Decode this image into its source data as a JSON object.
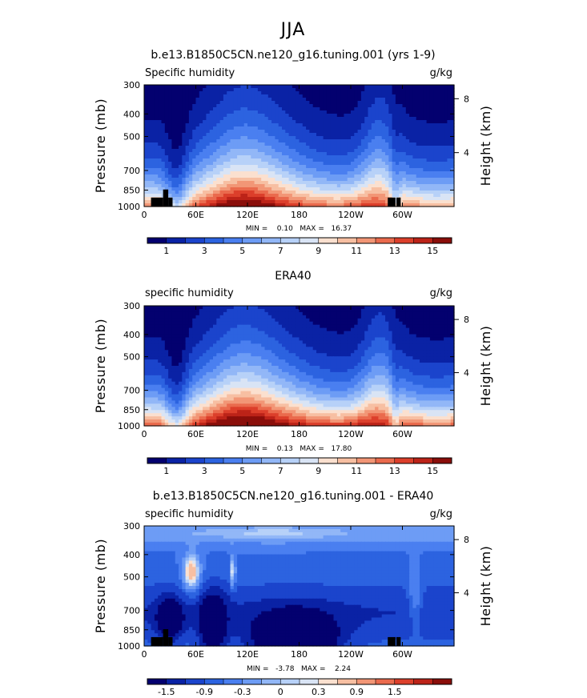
{
  "page_title": "JJA",
  "colors": {
    "seq": [
      "#03006f",
      "#0a22a5",
      "#1b44cc",
      "#2c63e0",
      "#4a7ff0",
      "#6d9cf5",
      "#92b7f7",
      "#b7d1f8",
      "#d9e4f5",
      "#fbe0cf",
      "#f7bfa2",
      "#f29676",
      "#ea6a4d",
      "#dc3f2b",
      "#bc2318",
      "#8a0e0a"
    ],
    "div": [
      "#03006f",
      "#0a22a5",
      "#1b44cc",
      "#2c63e0",
      "#4a7ff0",
      "#6d9cf5",
      "#92b7f7",
      "#b7d1f8",
      "#d9e4f5",
      "#fbe0cf",
      "#f7bfa2",
      "#f29676",
      "#ea6a4d",
      "#dc3f2b",
      "#bc2318",
      "#8a0e0a"
    ],
    "land": "#000000"
  },
  "chart_data": [
    {
      "type": "heatmap",
      "title": "b.e13.B1850C5CN.ne120_g16.tuning.001 (yrs 1-9)",
      "left_label": "Specific humidity",
      "right_label": "g/kg",
      "ylabel": "Pressure (mb)",
      "ylabel_right": "Height (km)",
      "xticks": [
        "0",
        "60E",
        "120E",
        "180",
        "120W",
        "60W"
      ],
      "x_lon": [
        0,
        60,
        120,
        180,
        240,
        300
      ],
      "xlim": [
        0,
        360
      ],
      "yticks": [
        "300",
        "400",
        "500",
        "700",
        "850",
        "1000"
      ],
      "y_p": [
        300,
        400,
        500,
        700,
        850,
        1000
      ],
      "ylim": [
        1000,
        300
      ],
      "right_ticks": [
        "8",
        "4"
      ],
      "right_km": [
        8,
        4
      ],
      "stats": "MIN =    0.10   MAX =   16.37",
      "min": 0.1,
      "max": 16.37,
      "colorbar_labels": [
        "1",
        "3",
        "5",
        "7",
        "9",
        "11",
        "13",
        "15"
      ],
      "colorbar": "seq",
      "field": "model"
    },
    {
      "type": "heatmap",
      "title": "ERA40",
      "left_label": "specific humidity",
      "right_label": "g/kg",
      "ylabel": "Pressure (mb)",
      "ylabel_right": "Height (km)",
      "xticks": [
        "0",
        "60E",
        "120E",
        "180",
        "120W",
        "60W"
      ],
      "x_lon": [
        0,
        60,
        120,
        180,
        240,
        300
      ],
      "xlim": [
        0,
        360
      ],
      "yticks": [
        "300",
        "400",
        "500",
        "700",
        "850",
        "1000"
      ],
      "y_p": [
        300,
        400,
        500,
        700,
        850,
        1000
      ],
      "ylim": [
        1000,
        300
      ],
      "right_ticks": [
        "8",
        "4"
      ],
      "right_km": [
        8,
        4
      ],
      "stats": "MIN =    0.13   MAX =   17.80",
      "min": 0.13,
      "max": 17.8,
      "colorbar_labels": [
        "1",
        "3",
        "5",
        "7",
        "9",
        "11",
        "13",
        "15"
      ],
      "colorbar": "seq",
      "field": "obs"
    },
    {
      "type": "heatmap",
      "title": "b.e13.B1850C5CN.ne120_g16.tuning.001 - ERA40",
      "left_label": "specific humidity",
      "right_label": "g/kg",
      "ylabel": "Pressure (mb)",
      "ylabel_right": "Height (km)",
      "xticks": [
        "0",
        "60E",
        "120E",
        "180",
        "120W",
        "60W"
      ],
      "x_lon": [
        0,
        60,
        120,
        180,
        240,
        300
      ],
      "xlim": [
        0,
        360
      ],
      "yticks": [
        "300",
        "400",
        "500",
        "700",
        "850",
        "1000"
      ],
      "y_p": [
        300,
        400,
        500,
        700,
        850,
        1000
      ],
      "ylim": [
        1000,
        300
      ],
      "right_ticks": [
        "8",
        "4"
      ],
      "right_km": [
        8,
        4
      ],
      "stats": "MIN =   -3.78   MAX =    2.24",
      "min": -3.78,
      "max": 2.24,
      "colorbar_labels": [
        "-1.5",
        "-0.9",
        "-0.3",
        "0",
        "0.3",
        "0.9",
        "1.5"
      ],
      "colorbar": "div",
      "field": "diff"
    }
  ]
}
